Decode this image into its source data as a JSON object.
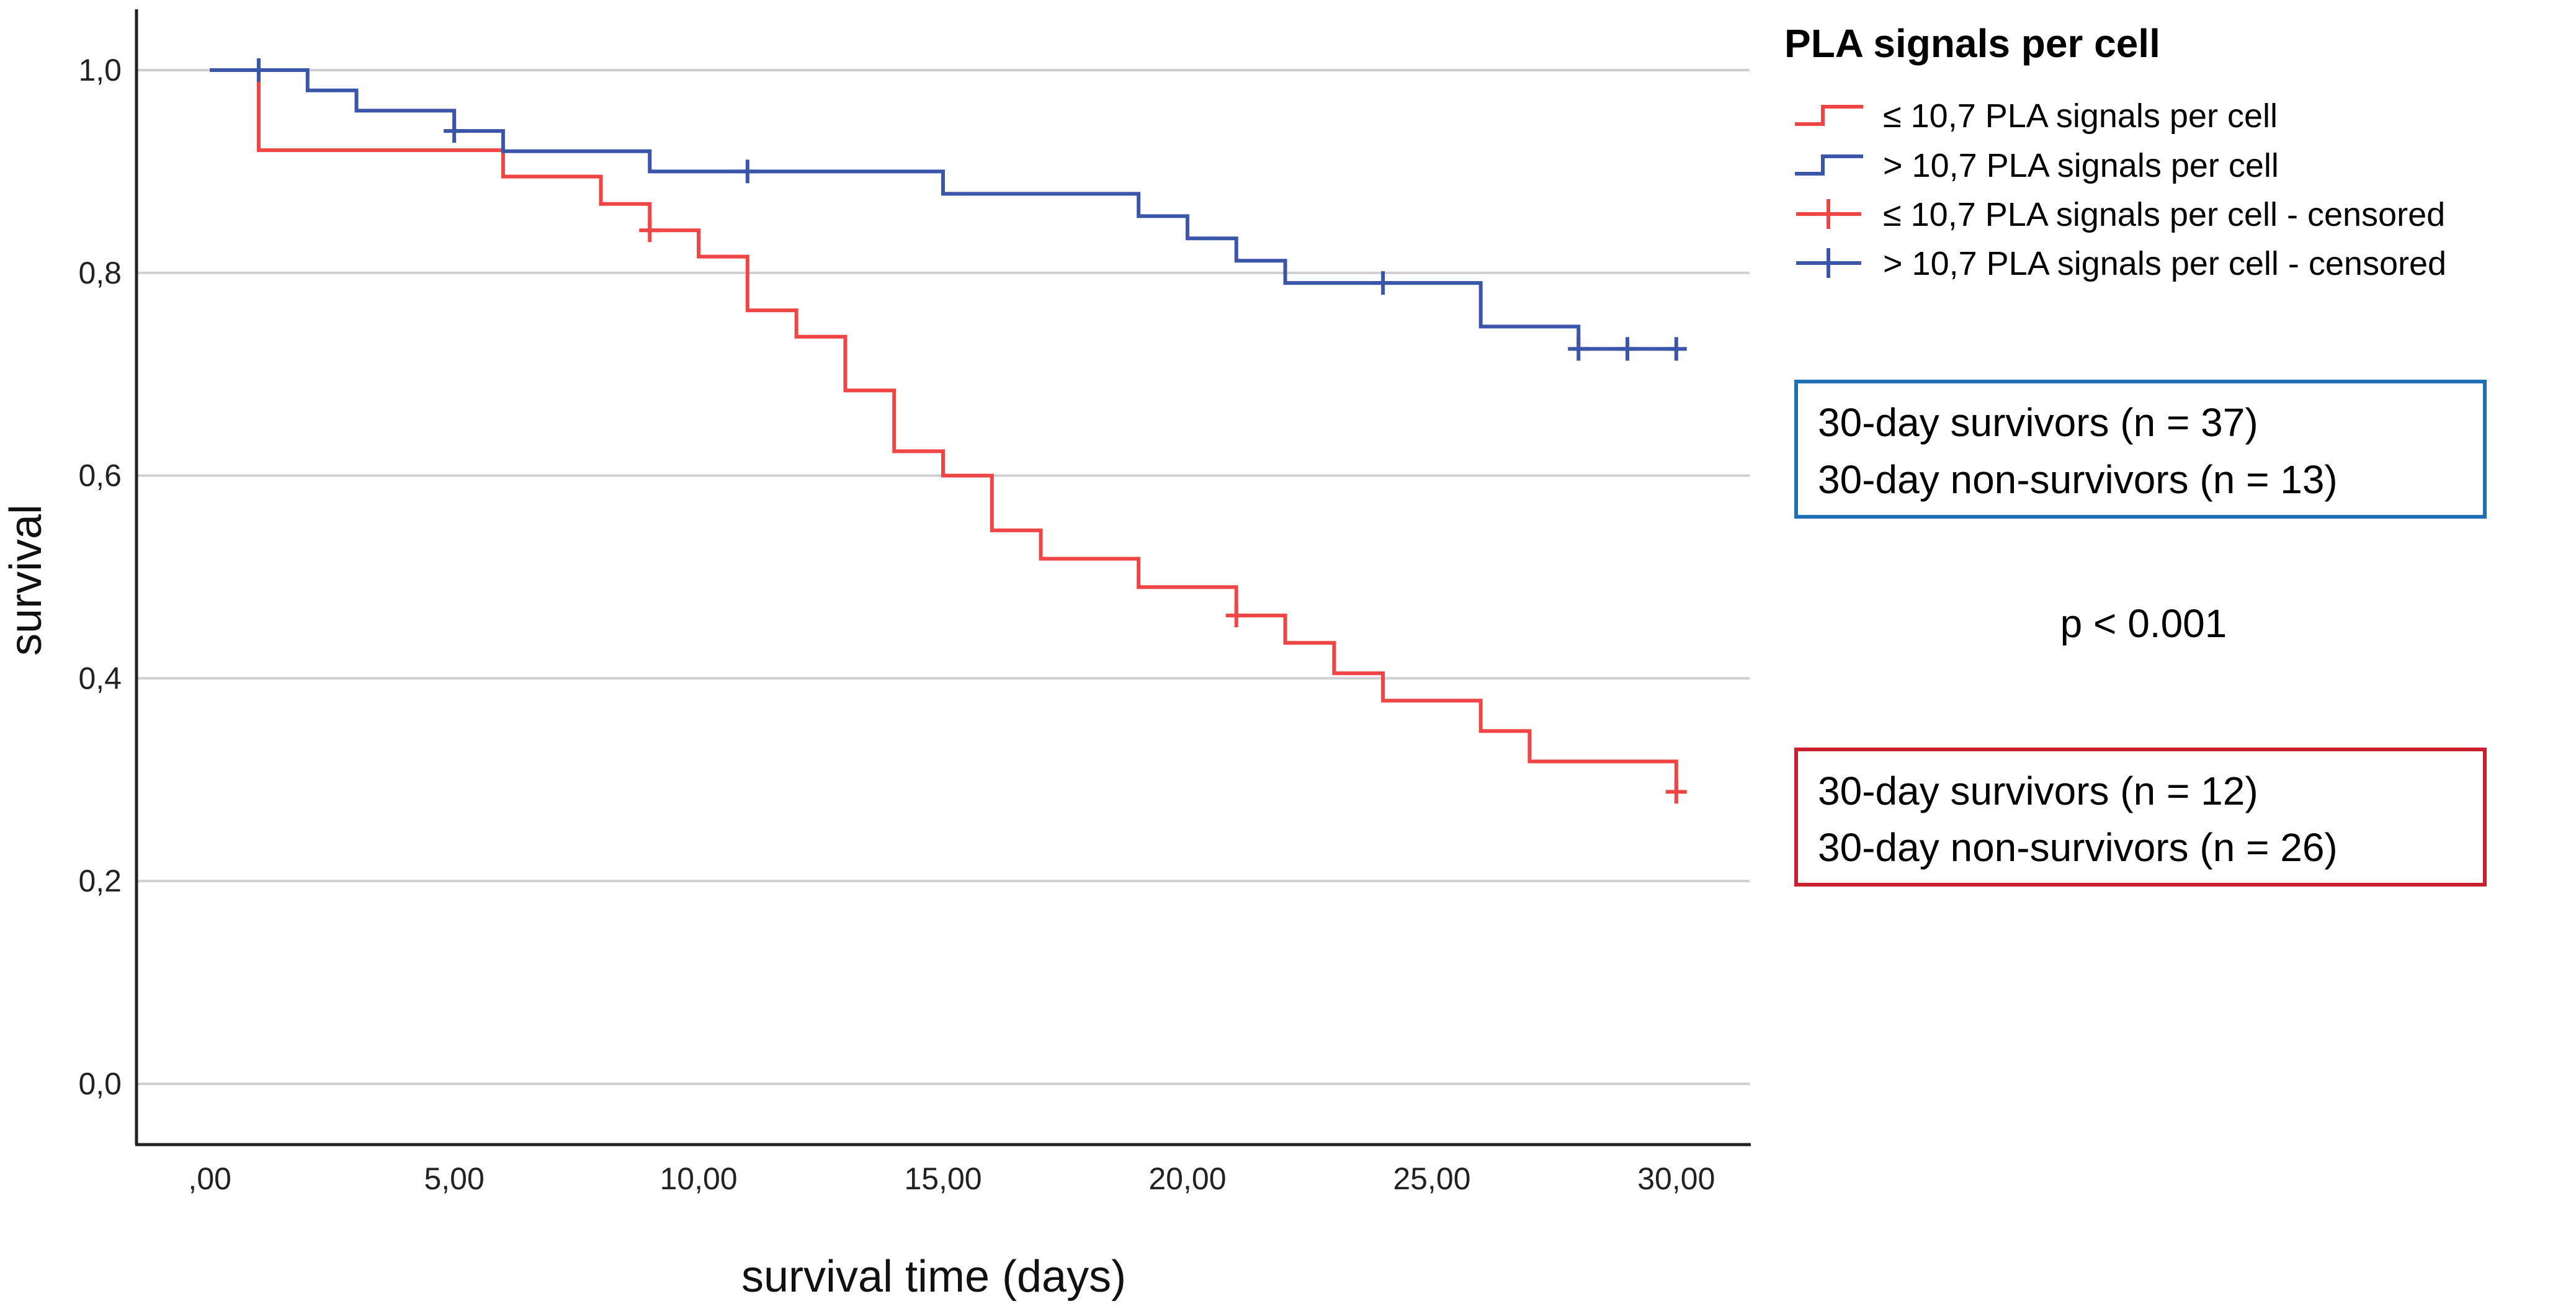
{
  "chart_data": {
    "type": "line",
    "subtype": "kaplan-meier step",
    "xlabel": "survival time (days)",
    "ylabel": "survival",
    "xlim": [
      -1.5,
      31.5
    ],
    "ylim": [
      -0.06,
      1.06
    ],
    "x_ticks": [
      0,
      5,
      10,
      15,
      20,
      25,
      30
    ],
    "x_tick_labels": [
      ",00",
      "5,00",
      "10,00",
      "15,00",
      "20,00",
      "25,00",
      "30,00"
    ],
    "y_ticks": [
      0,
      0.2,
      0.4,
      0.6,
      0.8,
      1.0
    ],
    "y_tick_labels": [
      "0,0",
      "0,2",
      "0,4",
      "0,6",
      "0,8",
      "1,0"
    ],
    "grid": "horizontal",
    "legend": {
      "title": "PLA signals per cell",
      "position": "top-right",
      "entries": [
        "≤ 10,7 PLA signals per cell",
        "> 10,7 PLA signals per cell",
        "≤ 10,7 PLA signals per cell - censored",
        "> 10,7 PLA signals per cell - censored"
      ]
    },
    "series": [
      {
        "name": "≤ 10,7 PLA signals per cell",
        "color": "#ef4545",
        "steps": [
          [
            0,
            1.0
          ],
          [
            1,
            0.921
          ],
          [
            6,
            0.895
          ],
          [
            8,
            0.868
          ],
          [
            9,
            0.842
          ],
          [
            10,
            0.816
          ],
          [
            11,
            0.763
          ],
          [
            12,
            0.737
          ],
          [
            13,
            0.684
          ],
          [
            14,
            0.624
          ],
          [
            15,
            0.6
          ],
          [
            16,
            0.546
          ],
          [
            17,
            0.518
          ],
          [
            19,
            0.49
          ],
          [
            21,
            0.462
          ],
          [
            22,
            0.435
          ],
          [
            23,
            0.405
          ],
          [
            24,
            0.378
          ],
          [
            26,
            0.348
          ],
          [
            27,
            0.318
          ],
          [
            30,
            0.288
          ]
        ],
        "end_x": 30,
        "censored": [
          [
            9,
            0.842
          ],
          [
            21,
            0.462
          ],
          [
            30,
            0.288
          ]
        ]
      },
      {
        "name": "> 10,7 PLA signals per cell",
        "color": "#3b55a8",
        "steps": [
          [
            0,
            1.0
          ],
          [
            2,
            0.98
          ],
          [
            3,
            0.96
          ],
          [
            5,
            0.94
          ],
          [
            6,
            0.92
          ],
          [
            9,
            0.9
          ],
          [
            15,
            0.878
          ],
          [
            19,
            0.856
          ],
          [
            20,
            0.834
          ],
          [
            21,
            0.812
          ],
          [
            22,
            0.79
          ],
          [
            26,
            0.747
          ],
          [
            28,
            0.725
          ]
        ],
        "end_x": 30,
        "censored": [
          [
            1,
            1.0
          ],
          [
            5,
            0.94
          ],
          [
            11,
            0.9
          ],
          [
            24,
            0.79
          ],
          [
            28,
            0.725
          ],
          [
            29,
            0.725
          ],
          [
            30,
            0.725
          ]
        ]
      }
    ],
    "annotations": [
      {
        "group": "> 10,7 PLA signals per cell",
        "lines": [
          "30-day survivors (n = 37)",
          "30-day non-survivors (n = 13)"
        ],
        "border_color": "#1f6fb5"
      },
      {
        "text": "p < 0.001"
      },
      {
        "group": "≤ 10,7 PLA signals per cell",
        "lines": [
          "30-day survivors (n = 12)",
          "30-day non-survivors (n = 26)"
        ],
        "border_color": "#c8202f"
      }
    ]
  }
}
